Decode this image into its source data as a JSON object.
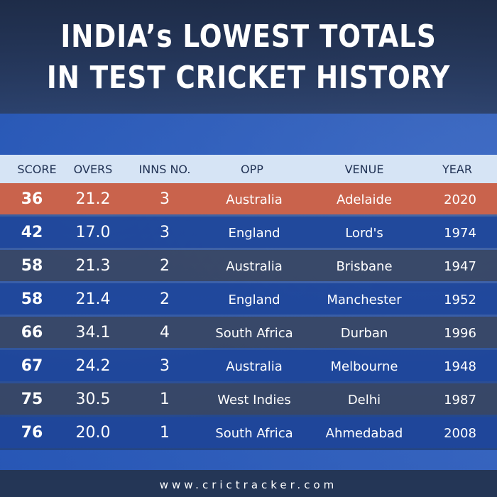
{
  "title": {
    "line1": "INDIA’s LOWEST TOTALS",
    "line2": "IN TEST CRICKET HISTORY"
  },
  "columns": {
    "score": "SCORE",
    "overs": "OVERS",
    "inns": "INNS NO.",
    "opp": "OPP",
    "venue": "VENUE",
    "year": "YEAR"
  },
  "rows": [
    {
      "score": "36",
      "overs": "21.2",
      "inns": "3",
      "opp": "Australia",
      "venue": "Adelaide",
      "year": "2020"
    },
    {
      "score": "42",
      "overs": "17.0",
      "inns": "3",
      "opp": "England",
      "venue": "Lord's",
      "year": "1974"
    },
    {
      "score": "58",
      "overs": "21.3",
      "inns": "2",
      "opp": "Australia",
      "venue": "Brisbane",
      "year": "1947"
    },
    {
      "score": "58",
      "overs": "21.4",
      "inns": "2",
      "opp": "England",
      "venue": "Manchester",
      "year": "1952"
    },
    {
      "score": "66",
      "overs": "34.1",
      "inns": "4",
      "opp": "South Africa",
      "venue": "Durban",
      "year": "1996"
    },
    {
      "score": "67",
      "overs": "24.2",
      "inns": "3",
      "opp": "Australia",
      "venue": "Melbourne",
      "year": "1948"
    },
    {
      "score": "75",
      "overs": "30.5",
      "inns": "1",
      "opp": "West Indies",
      "venue": "Delhi",
      "year": "1987"
    },
    {
      "score": "76",
      "overs": "20.0",
      "inns": "1",
      "opp": "South Africa",
      "venue": "Ahmedabad",
      "year": "2008"
    }
  ],
  "footer": {
    "url": "www.crictracker.com"
  },
  "colors": {
    "highlight_row": "#c9634c",
    "blue_row": "#1e469b",
    "grey_row": "#38466a",
    "header_strip": "#d6e4f5"
  }
}
